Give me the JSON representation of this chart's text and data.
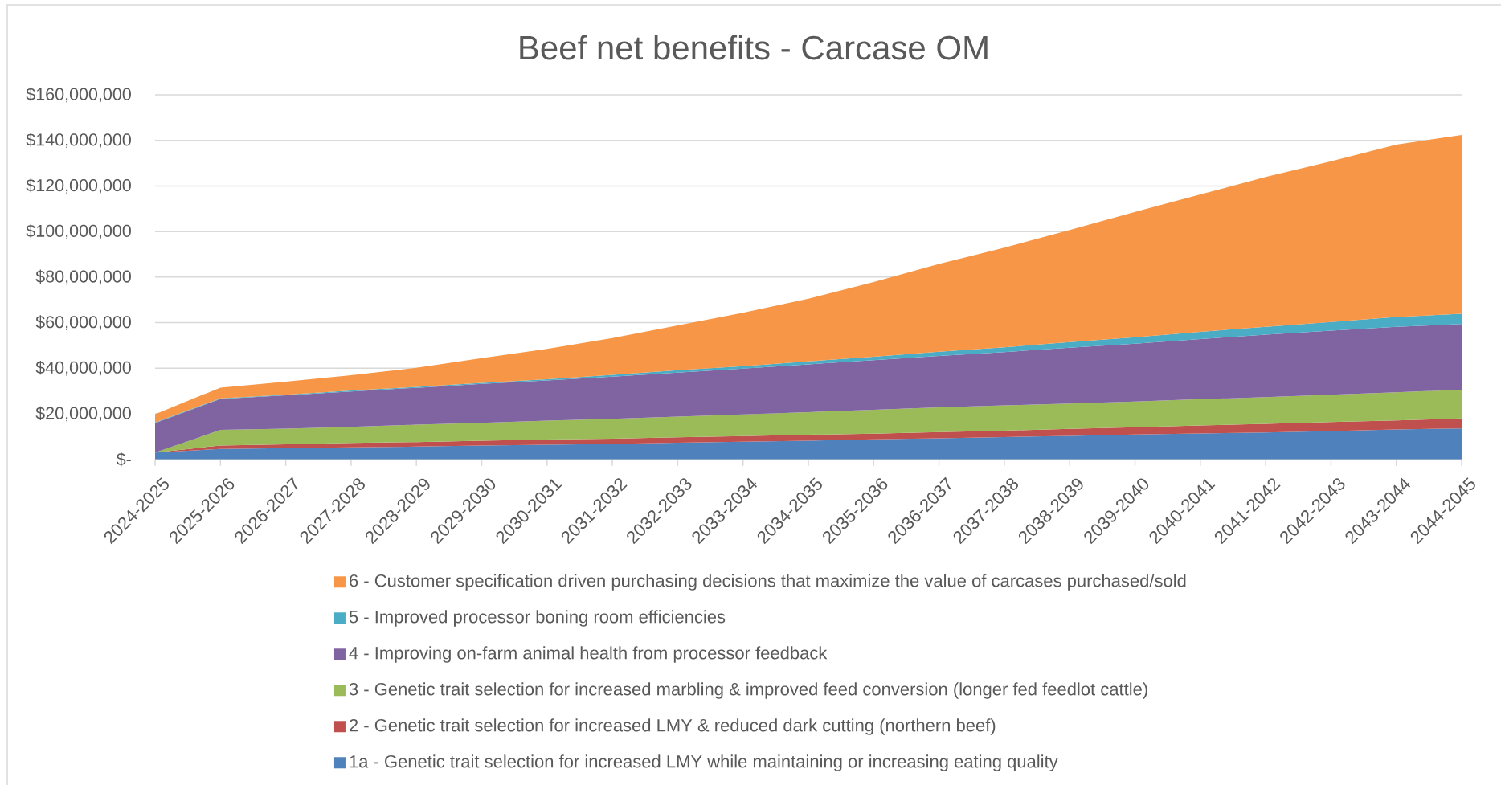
{
  "chart_data": {
    "type": "area",
    "title": "Beef net benefits - Carcase OM",
    "stacked": true,
    "categories": [
      "2024-2025",
      "2025-2026",
      "2026-2027",
      "2027-2028",
      "2028-2029",
      "2029-2030",
      "2030-2031",
      "2031-2032",
      "2032-2033",
      "2033-2034",
      "2034-2035",
      "2035-2036",
      "2036-2037",
      "2037-2038",
      "2038-2039",
      "2039-2040",
      "2040-2041",
      "2041-2042",
      "2042-2043",
      "2043-2044",
      "2044-2045"
    ],
    "series": [
      {
        "name": "1a - Genetic trait selection for increased LMY while maintaining or increasing eating quality",
        "color": "#4f81bd",
        "values": [
          3000000,
          4600000,
          4900000,
          5300000,
          5600000,
          6100000,
          6400000,
          6800000,
          7300000,
          7700000,
          8200000,
          8800000,
          9200000,
          9800000,
          10300000,
          10900000,
          11400000,
          11800000,
          12400000,
          13100000,
          13600000
        ]
      },
      {
        "name": "2 - Genetic trait selection for increased LMY & reduced dark cutting (northern beef)",
        "color": "#c0504d",
        "values": [
          0,
          1500000,
          1700000,
          1900000,
          2000000,
          2100000,
          2300000,
          2300000,
          2400000,
          2500000,
          2600000,
          2500000,
          2800000,
          2800000,
          3100000,
          3200000,
          3500000,
          3800000,
          4000000,
          4000000,
          4400000
        ]
      },
      {
        "name": "3 - Genetic trait selection for increased marbling & improved feed conversion (longer fed feedlot cattle)",
        "color": "#9bbb59",
        "values": [
          0,
          6800000,
          6900000,
          7100000,
          7600000,
          7800000,
          8300000,
          8700000,
          9100000,
          9500000,
          9900000,
          10500000,
          10800000,
          11100000,
          11100000,
          11300000,
          11500000,
          11700000,
          12000000,
          12300000,
          12600000
        ]
      },
      {
        "name": "4 - Improving on-farm animal health from processor feedback",
        "color": "#8064a2",
        "values": [
          12900000,
          13600000,
          14600000,
          15500000,
          16200000,
          17100000,
          17600000,
          18500000,
          19300000,
          20100000,
          21000000,
          21700000,
          22600000,
          23400000,
          24500000,
          25400000,
          26400000,
          27400000,
          28100000,
          28800000,
          28800000
        ]
      },
      {
        "name": "5 - Improved processor boning room efficiencies",
        "color": "#4bacc6",
        "values": [
          300000,
          300000,
          300000,
          400000,
          400000,
          500000,
          600000,
          800000,
          1000000,
          1100000,
          1300000,
          1500000,
          1800000,
          2100000,
          2500000,
          2800000,
          3200000,
          3500000,
          3800000,
          4300000,
          4500000
        ]
      },
      {
        "name": "6 - Customer specification driven purchasing decisions that maximize the value of carcases purchased/sold",
        "color": "#f79646",
        "values": [
          3600000,
          4700000,
          5700000,
          6700000,
          8400000,
          10800000,
          13300000,
          16100000,
          19700000,
          23400000,
          27500000,
          32800000,
          38600000,
          43700000,
          49200000,
          55000000,
          60300000,
          65700000,
          70500000,
          75600000,
          78500000
        ]
      }
    ],
    "ylim": [
      0,
      160000000
    ],
    "yticks": [
      {
        "value": 0,
        "label": "$-"
      },
      {
        "value": 20000000,
        "label": "$20,000,000"
      },
      {
        "value": 40000000,
        "label": "$40,000,000"
      },
      {
        "value": 60000000,
        "label": "$60,000,000"
      },
      {
        "value": 80000000,
        "label": "$80,000,000"
      },
      {
        "value": 100000000,
        "label": "$100,000,000"
      },
      {
        "value": 120000000,
        "label": "$120,000,000"
      },
      {
        "value": 140000000,
        "label": "$140,000,000"
      },
      {
        "value": 160000000,
        "label": "$160,000,000"
      }
    ],
    "grid": "y",
    "legend": "bottom"
  }
}
